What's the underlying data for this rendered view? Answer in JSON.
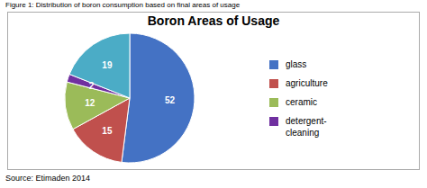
{
  "chart_data": {
    "type": "pie",
    "title": "Boron Areas of Usage",
    "annotations": [
      "Figure 1: Distribution of boron consumption based on final areas of usage",
      "Source: Etimaden 2014"
    ],
    "categories": [
      "glass",
      "agriculture",
      "ceramic",
      "detergent-\ncleaning",
      null
    ],
    "values": [
      52,
      15,
      12,
      2,
      19
    ],
    "colors": [
      "#4472C4",
      "#C0504D",
      "#9BBB59",
      "#7030A0",
      "#4BACC6"
    ],
    "data_labels": true,
    "legend": "right"
  }
}
